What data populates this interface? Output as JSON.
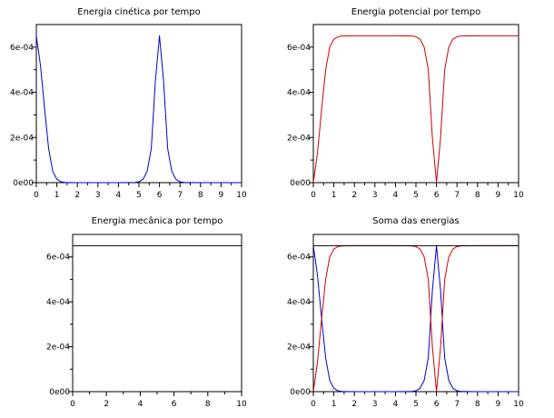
{
  "chart_data": [
    {
      "type": "line",
      "title": "Energia cinética por tempo",
      "xlim": [
        0,
        10
      ],
      "ylim": [
        0,
        0.0007
      ],
      "xticks": [
        0,
        1,
        2,
        3,
        4,
        5,
        6,
        7,
        8,
        9,
        10
      ],
      "xtick_labels": [
        "0",
        "1",
        "2",
        "3",
        "4",
        "5",
        "6",
        "7",
        "8",
        "9",
        "10"
      ],
      "yticks": [
        0,
        0.0002,
        0.0004,
        0.0006
      ],
      "ytick_labels": [
        "0e00",
        "2e-04",
        "4e-04",
        "6e-04"
      ],
      "grid": false,
      "series": [
        {
          "color": "#0000cc",
          "x": [
            0,
            0.2,
            0.4,
            0.6,
            0.8,
            1.0,
            1.2,
            1.4,
            2,
            3,
            4,
            4.8,
            5.0,
            5.2,
            5.4,
            5.6,
            5.8,
            6.0,
            6.2,
            6.4,
            6.6,
            6.8,
            7.0,
            7.2,
            8,
            9,
            10
          ],
          "y": [
            0.00065,
            0.00052,
            0.00033,
            0.00015,
            5e-05,
            1.5e-05,
            4e-06,
            1e-06,
            0,
            0,
            0,
            1e-06,
            4e-06,
            1.5e-05,
            5e-05,
            0.00015,
            0.00045,
            0.00065,
            0.00045,
            0.00015,
            5e-05,
            1.5e-05,
            4e-06,
            1e-06,
            0,
            0,
            0
          ]
        }
      ]
    },
    {
      "type": "line",
      "title": "Energia potencial por tempo",
      "xlim": [
        0,
        10
      ],
      "ylim": [
        0,
        0.0007
      ],
      "xticks": [
        0,
        1,
        2,
        3,
        4,
        5,
        6,
        7,
        8,
        9,
        10
      ],
      "xtick_labels": [
        "0",
        "1",
        "2",
        "3",
        "4",
        "5",
        "6",
        "7",
        "8",
        "9",
        "10"
      ],
      "yticks": [
        0,
        0.0002,
        0.0004,
        0.0006
      ],
      "ytick_labels": [
        "0e00",
        "2e-04",
        "4e-04",
        "6e-04"
      ],
      "grid": false,
      "series": [
        {
          "color": "#cc0000",
          "x": [
            0,
            0.2,
            0.4,
            0.6,
            0.8,
            1.0,
            1.2,
            1.4,
            2,
            3,
            4,
            4.8,
            5.0,
            5.2,
            5.4,
            5.6,
            5.8,
            6.0,
            6.2,
            6.4,
            6.6,
            6.8,
            7.0,
            7.2,
            8,
            9,
            10
          ],
          "y": [
            0,
            0.00013,
            0.00032,
            0.0005,
            0.0006,
            0.000635,
            0.000646,
            0.000649,
            0.00065,
            0.00065,
            0.00065,
            0.000649,
            0.000646,
            0.000635,
            0.0006,
            0.0005,
            0.0002,
            0,
            0.0002,
            0.0005,
            0.0006,
            0.000635,
            0.000646,
            0.000649,
            0.00065,
            0.00065,
            0.00065
          ]
        }
      ]
    },
    {
      "type": "line",
      "title": "Energia mecânica por tempo",
      "xlim": [
        0,
        10
      ],
      "ylim": [
        0,
        0.0007
      ],
      "xticks": [
        0,
        2,
        4,
        6,
        8,
        10
      ],
      "xtick_labels": [
        "0",
        "2",
        "4",
        "6",
        "8",
        "10"
      ],
      "yticks": [
        0,
        0.0002,
        0.0004,
        0.0006
      ],
      "ytick_labels": [
        "0e00",
        "2e-04",
        "4e-04",
        "6e-04"
      ],
      "grid": false,
      "series": [
        {
          "color": "#000000",
          "x": [
            0,
            10
          ],
          "y": [
            0.00065,
            0.00065
          ]
        }
      ]
    },
    {
      "type": "line",
      "title": "Soma das energias",
      "xlim": [
        0,
        10
      ],
      "ylim": [
        0,
        0.0007
      ],
      "xticks": [
        0,
        1,
        2,
        3,
        4,
        5,
        6,
        7,
        8,
        9,
        10
      ],
      "xtick_labels": [
        "0",
        "1",
        "2",
        "3",
        "4",
        "5",
        "6",
        "7",
        "8",
        "9",
        "10"
      ],
      "yticks": [
        0,
        0.0002,
        0.0004,
        0.0006
      ],
      "ytick_labels": [
        "0e00",
        "2e-04",
        "4e-04",
        "6e-04"
      ],
      "grid": false,
      "series": [
        {
          "color": "#0000cc",
          "x": [
            0,
            0.2,
            0.4,
            0.6,
            0.8,
            1.0,
            1.2,
            1.4,
            2,
            3,
            4,
            4.8,
            5.0,
            5.2,
            5.4,
            5.6,
            5.8,
            6.0,
            6.2,
            6.4,
            6.6,
            6.8,
            7.0,
            7.2,
            8,
            9,
            10
          ],
          "y": [
            0.00065,
            0.00052,
            0.00033,
            0.00015,
            5e-05,
            1.5e-05,
            4e-06,
            1e-06,
            0,
            0,
            0,
            1e-06,
            4e-06,
            1.5e-05,
            5e-05,
            0.00015,
            0.00045,
            0.00065,
            0.00045,
            0.00015,
            5e-05,
            1.5e-05,
            4e-06,
            1e-06,
            0,
            0,
            0
          ]
        },
        {
          "color": "#cc0000",
          "x": [
            0,
            0.2,
            0.4,
            0.6,
            0.8,
            1.0,
            1.2,
            1.4,
            2,
            3,
            4,
            4.8,
            5.0,
            5.2,
            5.4,
            5.6,
            5.8,
            6.0,
            6.2,
            6.4,
            6.6,
            6.8,
            7.0,
            7.2,
            8,
            9,
            10
          ],
          "y": [
            0,
            0.00013,
            0.00032,
            0.0005,
            0.0006,
            0.000635,
            0.000646,
            0.000649,
            0.00065,
            0.00065,
            0.00065,
            0.000649,
            0.000646,
            0.000635,
            0.0006,
            0.0005,
            0.0002,
            0,
            0.0002,
            0.0005,
            0.0006,
            0.000635,
            0.000646,
            0.000649,
            0.00065,
            0.00065,
            0.00065
          ]
        },
        {
          "color": "#000000",
          "x": [
            0,
            10
          ],
          "y": [
            0.00065,
            0.00065
          ]
        }
      ]
    }
  ]
}
